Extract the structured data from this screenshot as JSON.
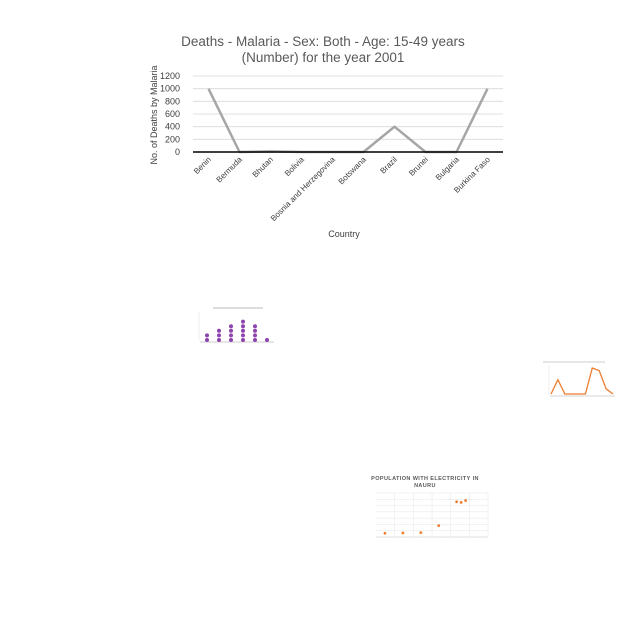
{
  "chart_data": [
    {
      "type": "line",
      "title_line1": "Deaths - Malaria - Sex: Both - Age: 15-49 years",
      "title_line2": "(Number) for the year 2001",
      "xlabel": "Country",
      "ylabel": "No. of Deaths by Malaria",
      "categories": [
        "Benin",
        "Bermuda",
        "Bhutan",
        "Bolivia",
        "Bosnia and Herzegovina",
        "Botswana",
        "Brazil",
        "Brunei",
        "Bulgaria",
        "Burkina Faso"
      ],
      "values": [
        1000,
        0,
        10,
        0,
        0,
        0,
        400,
        0,
        0,
        1000
      ],
      "yticks": [
        "0",
        "200",
        "400",
        "600",
        "800",
        "1000",
        "1200"
      ],
      "ylim": [
        0,
        1200
      ],
      "grid": true,
      "color": "#a6a6a6"
    },
    {
      "type": "scatter",
      "title": "",
      "marker": "dot-stack",
      "values": [
        2,
        3,
        4,
        5,
        4,
        1
      ],
      "color": "#8e44ad"
    },
    {
      "type": "line",
      "title": "",
      "values": [
        0,
        0.55,
        0,
        0,
        0,
        0,
        1,
        0.9,
        0.2,
        0
      ],
      "color": "#ed7d31"
    },
    {
      "type": "scatter",
      "title_line1": "POPULATION WITH ELECTRICITY IN",
      "title_line2": "NAURU",
      "points": [
        [
          1992,
          0.3
        ],
        [
          1996,
          0.33
        ],
        [
          2000,
          0.35
        ],
        [
          2004,
          0.9
        ],
        [
          2008,
          2.8
        ],
        [
          2009,
          2.75
        ],
        [
          2010,
          2.9
        ]
      ],
      "xlim": [
        1990,
        2015
      ],
      "ylim": [
        0,
        3.5
      ],
      "color": "#ed7d31"
    }
  ]
}
